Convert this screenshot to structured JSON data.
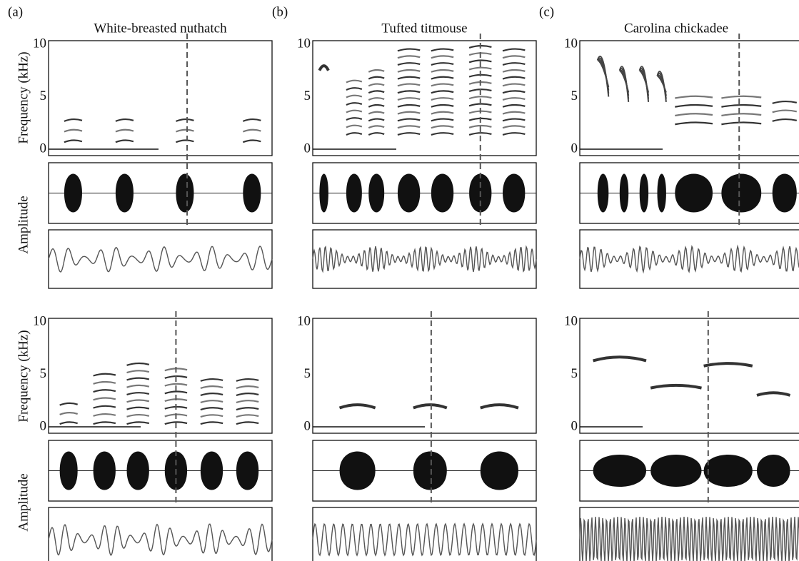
{
  "panels": [
    {
      "label": "(a)",
      "title": "White-breasted nuthatch"
    },
    {
      "label": "(b)",
      "title": "Tufted titmouse"
    },
    {
      "label": "(c)",
      "title": "Carolina chickadee"
    }
  ],
  "y_labels": {
    "frequency": "Frequency (kHz)",
    "amplitude": "Amplitude"
  },
  "ticks": [
    "10",
    "5",
    "0"
  ]
}
